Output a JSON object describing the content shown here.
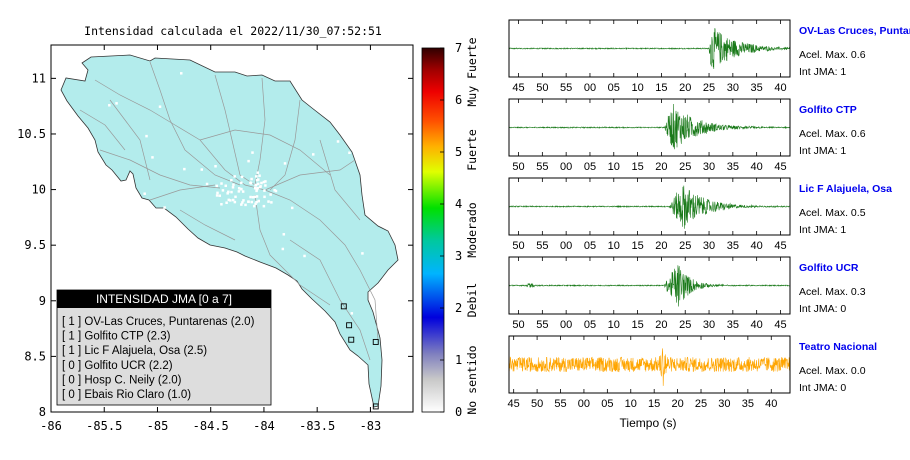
{
  "map": {
    "title": "Intensidad calculada el 2022/11/30_07:52:51",
    "x_ticks": [
      "-86",
      "-85.5",
      "-85",
      "-84.5",
      "-84",
      "-83.5",
      "-83"
    ],
    "y_ticks": [
      "8",
      "8.5",
      "9",
      "9.5",
      "10",
      "10.5",
      "11"
    ],
    "xlim": [
      -86,
      -82.6
    ],
    "ylim": [
      8,
      11.3
    ],
    "land_color": "#b3ecec",
    "road_color": "#999999",
    "station_markers": [
      {
        "lon": -82.95,
        "lat": 8.63
      },
      {
        "lon": -83.18,
        "lat": 8.65
      },
      {
        "lon": -83.2,
        "lat": 8.78
      },
      {
        "lon": -83.25,
        "lat": 8.95
      },
      {
        "lon": -82.95,
        "lat": 8.05
      }
    ]
  },
  "legend": {
    "title": "INTENSIDAD JMA [0 a 7]",
    "rows": [
      "[ 1 ] OV-Las Cruces, Puntarenas (2.0)",
      "[ 1 ] Golfito CTP (2.3)",
      "[ 1 ] Lic F Alajuela, Osa (2.5)",
      "[ 0 ] Golfito UCR (2.2)",
      "[ 0 ] Hosp C. Neily (2.0)",
      "[ 0 ] Ebais Rio Claro (1.0)"
    ]
  },
  "colorbar": {
    "ticks": [
      "0",
      "1",
      "2",
      "3",
      "4",
      "5",
      "6",
      "7"
    ],
    "labels": [
      "No sentido",
      "Debil",
      "Moderado",
      "Fuerte",
      "Muy Fuerte"
    ],
    "range": [
      0,
      7
    ]
  },
  "chart_data": {
    "type": "line",
    "x_label": "Tiempo (s)",
    "traces": [
      {
        "name": "OV-Las Cruces, Puntar",
        "acel": "Acel. Max. 0.6",
        "jma": "Int JMA: 1",
        "color": "#1a7a1a",
        "ticks": [
          "45",
          "50",
          "55",
          "00",
          "05",
          "10",
          "15",
          "20",
          "25",
          "30",
          "35",
          "40"
        ],
        "first_tick": 45,
        "window": [
          43,
          42
        ],
        "wave": {
          "onset": 25,
          "peak": 25.5,
          "amp": 0.9,
          "decay": 5,
          "noise": 0.02,
          "pre": 0
        }
      },
      {
        "name": "Golfito CTP",
        "acel": "Acel. Max. 0.6",
        "jma": "Int JMA: 1",
        "color": "#1a7a1a",
        "ticks": [
          "50",
          "55",
          "00",
          "05",
          "10",
          "15",
          "20",
          "25",
          "30",
          "35",
          "40",
          "45"
        ],
        "first_tick": 50,
        "window": [
          48,
          47
        ],
        "wave": {
          "onset": 20.5,
          "peak": 22.5,
          "amp": 0.9,
          "decay": 5,
          "noise": 0.02,
          "pre": 0
        }
      },
      {
        "name": "Lic F Alajuela, Osa",
        "acel": "Acel. Max. 0.5",
        "jma": "Int JMA: 1",
        "color": "#1a7a1a",
        "ticks": [
          "50",
          "55",
          "00",
          "05",
          "10",
          "15",
          "20",
          "25",
          "30",
          "35",
          "40",
          "45"
        ],
        "first_tick": 50,
        "window": [
          48,
          47
        ],
        "wave": {
          "onset": 21.5,
          "peak": 24.5,
          "amp": 0.9,
          "decay": 4.5,
          "noise": 0.02,
          "pre": 0
        }
      },
      {
        "name": "Golfito UCR",
        "acel": "Acel. Max. 0.3",
        "jma": "Int JMA: 0",
        "color": "#1a7a1a",
        "ticks": [
          "50",
          "55",
          "00",
          "05",
          "10",
          "15",
          "20",
          "25",
          "30",
          "35",
          "40",
          "45"
        ],
        "first_tick": 50,
        "window": [
          48,
          47
        ],
        "wave": {
          "onset": 20.5,
          "peak": 23.5,
          "amp": 0.9,
          "decay": 2.5,
          "noise": 0.02,
          "pre": 52.5
        }
      },
      {
        "name": "Teatro Nacional",
        "acel": "Acel. Max. 0.0",
        "jma": "Int JMA: 0",
        "color": "#ffa500",
        "ticks": [
          "45",
          "50",
          "55",
          "00",
          "05",
          "10",
          "15",
          "20",
          "25",
          "30",
          "35",
          "40"
        ],
        "first_tick": 45,
        "window": [
          44,
          44
        ],
        "wave": {
          "onset": 0,
          "peak": 17,
          "amp": 0.35,
          "decay": 0,
          "noise": 0.28,
          "pre": 0
        }
      }
    ]
  }
}
